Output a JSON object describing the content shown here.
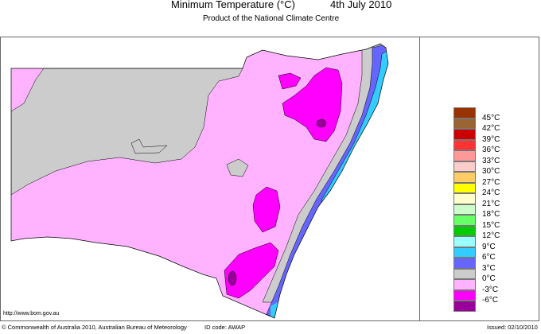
{
  "header": {
    "title": "Minimum Temperature (°C)",
    "date": "4th July 2010",
    "subtitle": "Product of the National Climate Centre"
  },
  "map": {
    "region": "New South Wales",
    "website": "http://www.bom.gov.au"
  },
  "legend": {
    "colors": [
      "#993300",
      "#996633",
      "#cc0000",
      "#ff3333",
      "#ff9999",
      "#ffcccc",
      "#ffcc66",
      "#ffff00",
      "#ffffcc",
      "#ccffcc",
      "#66ff66",
      "#00cc00",
      "#99ffff",
      "#33ccff",
      "#6666ff",
      "#cccccc",
      "#ffb3ff",
      "#ff00ff",
      "#990099"
    ],
    "labels": [
      "45°C",
      "42°C",
      "39°C",
      "36°C",
      "33°C",
      "30°C",
      "27°C",
      "24°C",
      "21°C",
      "18°C",
      "15°C",
      "12°C",
      "9°C",
      "6°C",
      "3°C",
      "0°C",
      "-3°C",
      "-6°C"
    ]
  },
  "footer": {
    "copyright": "© Commonwealth of Australia 2010, Australian Bureau of Meteorology",
    "id_code": "ID code: AWAP",
    "issued": "Issued: 02/10/2010"
  }
}
